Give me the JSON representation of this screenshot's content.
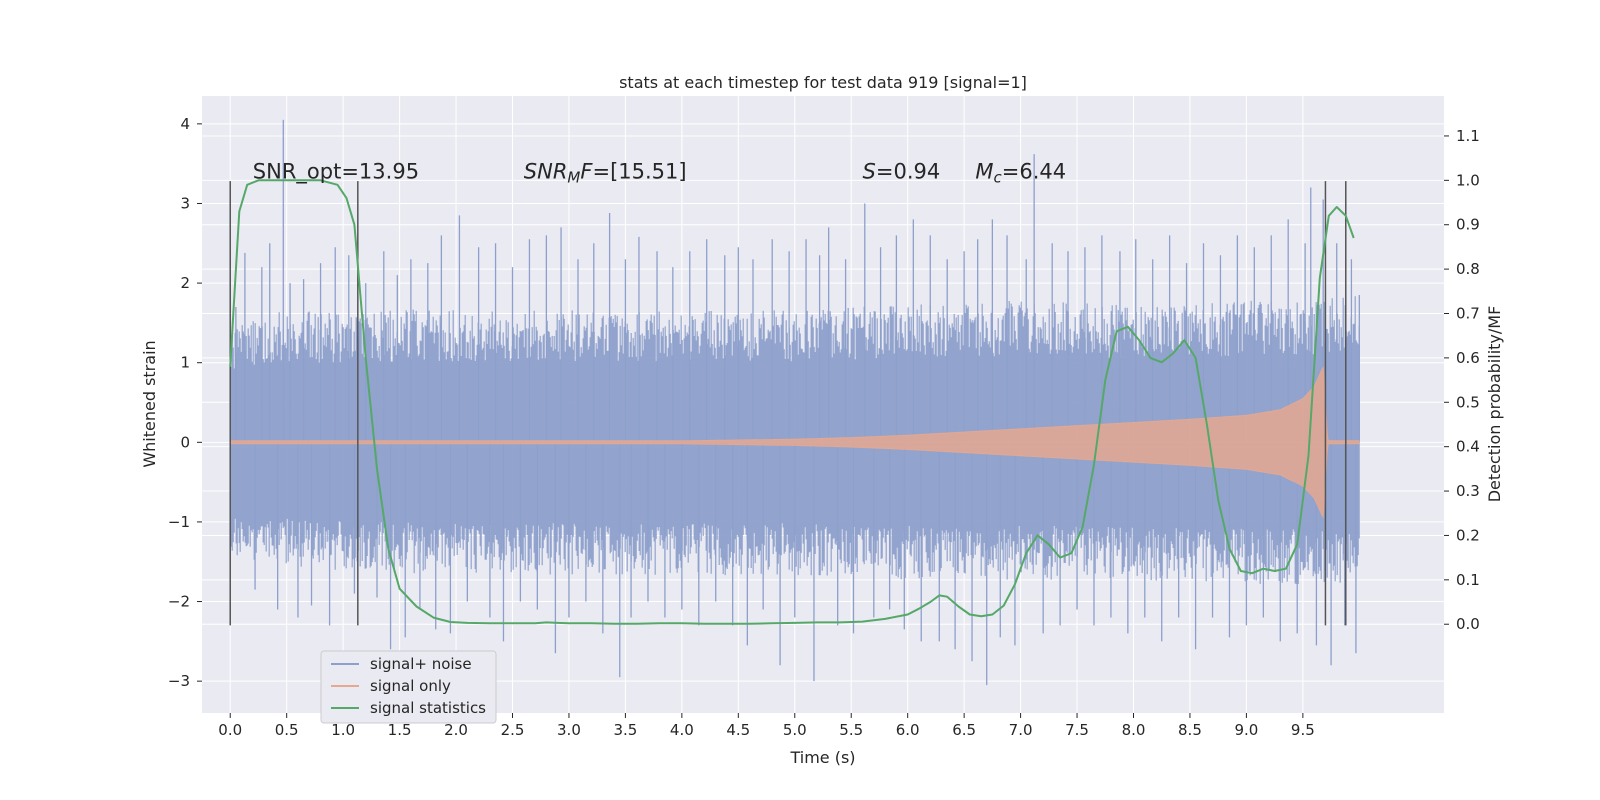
{
  "chart_data": {
    "type": "line",
    "title": "stats at each timestep for test data 919 [signal=1]",
    "xlabel": "Time (s)",
    "ylabel": "Whitened strain",
    "ylabel_right": "Detection probability/MF",
    "xlim": [
      -0.25,
      10.75
    ],
    "ylim": [
      -3.4,
      4.35
    ],
    "ylim_right": [
      -0.2,
      1.19
    ],
    "x_ticks": [
      "0.0",
      "0.5",
      "1.0",
      "1.5",
      "2.0",
      "2.5",
      "3.0",
      "3.5",
      "4.0",
      "4.5",
      "5.0",
      "5.5",
      "6.0",
      "6.5",
      "7.0",
      "7.5",
      "8.0",
      "8.5",
      "9.0",
      "9.5"
    ],
    "y_ticks": [
      "4",
      "3",
      "2",
      "1",
      "0",
      "−1",
      "−2",
      "−3"
    ],
    "y_ticks_right": [
      "1.1",
      "1.0",
      "0.9",
      "0.8",
      "0.7",
      "0.6",
      "0.5",
      "0.4",
      "0.3",
      "0.2",
      "0.1",
      "0.0"
    ],
    "grid": true,
    "legend_placement": "lower-left",
    "annotations": [
      {
        "x": 0.2,
        "y_right": 1.0,
        "parts": [
          {
            "t": "SNR_opt=13.95"
          }
        ]
      },
      {
        "x": 2.6,
        "y_right": 1.0,
        "parts": [
          {
            "t": "SNR",
            "style": "italic"
          },
          {
            "t": "M",
            "style": "italic-sub"
          },
          {
            "t": "F",
            "style": "italic"
          },
          {
            "t": "=[15.51]"
          }
        ]
      },
      {
        "x": 5.6,
        "y_right": 1.0,
        "parts": [
          {
            "t": "S",
            "style": "italic"
          },
          {
            "t": "=0.94"
          }
        ]
      },
      {
        "x": 6.6,
        "y_right": 1.0,
        "parts": [
          {
            "t": "M",
            "style": "italic"
          },
          {
            "t": "c",
            "style": "italic-sub"
          },
          {
            "t": "=6.44"
          }
        ]
      }
    ],
    "vlines": [
      {
        "x": 0.0,
        "y_from": -2.3,
        "y_to": 3.28
      },
      {
        "x": 1.13,
        "y_from": -2.3,
        "y_to": 3.28
      },
      {
        "x": 9.7,
        "y_from": -2.3,
        "y_to": 3.28
      },
      {
        "x": 9.88,
        "y_from": -2.3,
        "y_to": 3.28
      }
    ],
    "series": [
      {
        "name": "signal+ noise",
        "color": "#8da0cb",
        "kind": "noise-band",
        "x_range": [
          0.0,
          10.0
        ],
        "band_upper": [
          [
            0.0,
            1.3
          ],
          [
            0.5,
            1.45
          ],
          [
            1.0,
            1.4
          ],
          [
            1.5,
            1.45
          ],
          [
            2.0,
            1.45
          ],
          [
            3.0,
            1.45
          ],
          [
            4.0,
            1.45
          ],
          [
            5.0,
            1.45
          ],
          [
            6.0,
            1.5
          ],
          [
            7.0,
            1.55
          ],
          [
            8.0,
            1.5
          ],
          [
            9.0,
            1.55
          ],
          [
            10.0,
            1.6
          ]
        ],
        "band_lower": [
          [
            0.0,
            -1.3
          ],
          [
            1.0,
            -1.4
          ],
          [
            2.0,
            -1.45
          ],
          [
            3.0,
            -1.45
          ],
          [
            4.0,
            -1.45
          ],
          [
            5.0,
            -1.45
          ],
          [
            6.0,
            -1.5
          ],
          [
            7.0,
            -1.5
          ],
          [
            8.0,
            -1.5
          ],
          [
            9.0,
            -1.55
          ],
          [
            10.0,
            -1.55
          ]
        ],
        "spikes": [
          [
            0.05,
            1.7
          ],
          [
            0.13,
            2.38
          ],
          [
            0.22,
            -1.85
          ],
          [
            0.28,
            2.2
          ],
          [
            0.35,
            2.5
          ],
          [
            0.42,
            -2.1
          ],
          [
            0.47,
            4.05
          ],
          [
            0.53,
            2.0
          ],
          [
            0.6,
            -2.2
          ],
          [
            0.65,
            2.05
          ],
          [
            0.72,
            -2.05
          ],
          [
            0.8,
            2.25
          ],
          [
            0.88,
            -2.3
          ],
          [
            0.93,
            2.45
          ],
          [
            1.05,
            2.35
          ],
          [
            1.1,
            -1.9
          ],
          [
            1.2,
            2.0
          ],
          [
            1.3,
            -1.95
          ],
          [
            1.36,
            2.4
          ],
          [
            1.42,
            -2.6
          ],
          [
            1.48,
            2.1
          ],
          [
            1.55,
            -2.45
          ],
          [
            1.6,
            2.3
          ],
          [
            1.68,
            -2.1
          ],
          [
            1.75,
            2.25
          ],
          [
            1.82,
            -2.35
          ],
          [
            1.87,
            2.6
          ],
          [
            1.95,
            -2.4
          ],
          [
            2.03,
            2.85
          ],
          [
            2.1,
            -2.0
          ],
          [
            2.2,
            2.45
          ],
          [
            2.3,
            -2.2
          ],
          [
            2.35,
            2.5
          ],
          [
            2.42,
            -2.5
          ],
          [
            2.5,
            2.2
          ],
          [
            2.57,
            -2.0
          ],
          [
            2.65,
            2.55
          ],
          [
            2.72,
            -2.1
          ],
          [
            2.8,
            2.6
          ],
          [
            2.88,
            -2.65
          ],
          [
            2.93,
            2.7
          ],
          [
            3.0,
            -2.2
          ],
          [
            3.08,
            2.3
          ],
          [
            3.15,
            -2.0
          ],
          [
            3.22,
            2.5
          ],
          [
            3.3,
            -2.4
          ],
          [
            3.36,
            2.88
          ],
          [
            3.45,
            -2.95
          ],
          [
            3.5,
            2.3
          ],
          [
            3.55,
            -2.2
          ],
          [
            3.62,
            2.58
          ],
          [
            3.7,
            -2.0
          ],
          [
            3.78,
            2.4
          ],
          [
            3.85,
            -2.2
          ],
          [
            3.92,
            2.2
          ],
          [
            4.0,
            -2.1
          ],
          [
            4.07,
            2.4
          ],
          [
            4.15,
            -2.3
          ],
          [
            4.22,
            2.55
          ],
          [
            4.3,
            -2.0
          ],
          [
            4.38,
            2.35
          ],
          [
            4.45,
            -2.3
          ],
          [
            4.5,
            2.45
          ],
          [
            4.58,
            -2.55
          ],
          [
            4.63,
            2.3
          ],
          [
            4.72,
            -2.1
          ],
          [
            4.8,
            2.55
          ],
          [
            4.87,
            -2.8
          ],
          [
            4.95,
            2.4
          ],
          [
            5.0,
            -2.2
          ],
          [
            5.1,
            2.55
          ],
          [
            5.17,
            -3.0
          ],
          [
            5.22,
            2.35
          ],
          [
            5.3,
            2.7
          ],
          [
            5.38,
            -2.3
          ],
          [
            5.45,
            2.3
          ],
          [
            5.52,
            -2.4
          ],
          [
            5.62,
            3.0
          ],
          [
            5.7,
            -2.2
          ],
          [
            5.76,
            2.45
          ],
          [
            5.84,
            -2.1
          ],
          [
            5.9,
            2.6
          ],
          [
            5.97,
            -2.35
          ],
          [
            6.05,
            2.8
          ],
          [
            6.12,
            -2.5
          ],
          [
            6.2,
            2.6
          ],
          [
            6.28,
            -2.5
          ],
          [
            6.35,
            2.3
          ],
          [
            6.42,
            -2.6
          ],
          [
            6.5,
            2.4
          ],
          [
            6.57,
            -2.75
          ],
          [
            6.62,
            2.55
          ],
          [
            6.7,
            -3.05
          ],
          [
            6.75,
            2.8
          ],
          [
            6.82,
            -2.45
          ],
          [
            6.88,
            2.6
          ],
          [
            6.95,
            -2.55
          ],
          [
            7.05,
            2.3
          ],
          [
            7.12,
            3.62
          ],
          [
            7.2,
            -2.4
          ],
          [
            7.28,
            2.5
          ],
          [
            7.35,
            -2.3
          ],
          [
            7.42,
            2.4
          ],
          [
            7.5,
            -2.1
          ],
          [
            7.57,
            2.45
          ],
          [
            7.65,
            -2.3
          ],
          [
            7.72,
            2.6
          ],
          [
            7.8,
            -2.2
          ],
          [
            7.88,
            2.4
          ],
          [
            7.95,
            -2.4
          ],
          [
            8.02,
            2.55
          ],
          [
            8.1,
            -2.2
          ],
          [
            8.17,
            2.3
          ],
          [
            8.25,
            -2.5
          ],
          [
            8.32,
            2.6
          ],
          [
            8.4,
            -2.2
          ],
          [
            8.47,
            2.25
          ],
          [
            8.55,
            -2.6
          ],
          [
            8.62,
            2.5
          ],
          [
            8.7,
            -2.2
          ],
          [
            8.77,
            2.35
          ],
          [
            8.85,
            -2.45
          ],
          [
            8.92,
            2.6
          ],
          [
            9.0,
            -2.3
          ],
          [
            9.07,
            2.45
          ],
          [
            9.15,
            -2.2
          ],
          [
            9.22,
            2.6
          ],
          [
            9.3,
            -2.5
          ],
          [
            9.37,
            2.8
          ],
          [
            9.45,
            -2.4
          ],
          [
            9.52,
            2.5
          ],
          [
            9.57,
            3.2
          ],
          [
            9.62,
            -2.55
          ],
          [
            9.68,
            3.05
          ],
          [
            9.75,
            -2.8
          ],
          [
            9.8,
            2.5
          ],
          [
            9.87,
            -2.3
          ],
          [
            9.93,
            2.3
          ],
          [
            9.97,
            -2.65
          ],
          [
            10.0,
            1.85
          ]
        ]
      },
      {
        "name": "signal only",
        "color": "#e5a890",
        "kind": "chirp-envelope",
        "x_range": [
          0.0,
          10.0
        ],
        "envelope": [
          [
            0.0,
            0.02
          ],
          [
            1.0,
            0.02
          ],
          [
            2.0,
            0.02
          ],
          [
            3.0,
            0.02
          ],
          [
            4.0,
            0.02
          ],
          [
            4.5,
            0.03
          ],
          [
            5.0,
            0.04
          ],
          [
            5.5,
            0.06
          ],
          [
            6.0,
            0.09
          ],
          [
            6.5,
            0.13
          ],
          [
            7.0,
            0.17
          ],
          [
            7.5,
            0.21
          ],
          [
            8.0,
            0.25
          ],
          [
            8.5,
            0.29
          ],
          [
            9.0,
            0.34
          ],
          [
            9.3,
            0.41
          ],
          [
            9.5,
            0.55
          ],
          [
            9.6,
            0.7
          ],
          [
            9.68,
            0.95
          ],
          [
            9.72,
            0.02
          ],
          [
            10.0,
            0.02
          ]
        ]
      },
      {
        "name": "signal statistics",
        "color": "#55a868",
        "axis": "right",
        "x": [
          0.0,
          0.08,
          0.15,
          0.25,
          0.4,
          0.6,
          0.8,
          0.95,
          1.03,
          1.1,
          1.2,
          1.3,
          1.4,
          1.5,
          1.65,
          1.8,
          1.95,
          2.1,
          2.3,
          2.5,
          2.7,
          2.8,
          2.9,
          3.0,
          3.2,
          3.4,
          3.6,
          3.8,
          4.0,
          4.2,
          4.4,
          4.6,
          4.8,
          5.0,
          5.2,
          5.4,
          5.6,
          5.8,
          6.0,
          6.1,
          6.2,
          6.28,
          6.35,
          6.45,
          6.55,
          6.65,
          6.75,
          6.85,
          6.95,
          7.05,
          7.15,
          7.25,
          7.35,
          7.45,
          7.55,
          7.65,
          7.75,
          7.85,
          7.95,
          8.05,
          8.15,
          8.25,
          8.35,
          8.45,
          8.55,
          8.65,
          8.75,
          8.85,
          8.95,
          9.05,
          9.15,
          9.25,
          9.35,
          9.45,
          9.55,
          9.65,
          9.73,
          9.8,
          9.88,
          9.95
        ],
        "values": [
          0.58,
          0.93,
          0.99,
          1.0,
          1.0,
          1.0,
          1.0,
          0.99,
          0.96,
          0.9,
          0.6,
          0.35,
          0.17,
          0.08,
          0.04,
          0.015,
          0.005,
          0.003,
          0.002,
          0.002,
          0.002,
          0.004,
          0.003,
          0.002,
          0.002,
          0.001,
          0.001,
          0.002,
          0.002,
          0.001,
          0.001,
          0.001,
          0.002,
          0.003,
          0.004,
          0.004,
          0.006,
          0.012,
          0.022,
          0.035,
          0.05,
          0.065,
          0.062,
          0.04,
          0.022,
          0.018,
          0.022,
          0.042,
          0.09,
          0.16,
          0.2,
          0.18,
          0.15,
          0.16,
          0.22,
          0.36,
          0.55,
          0.66,
          0.67,
          0.64,
          0.6,
          0.59,
          0.61,
          0.64,
          0.6,
          0.45,
          0.28,
          0.17,
          0.12,
          0.115,
          0.125,
          0.12,
          0.125,
          0.18,
          0.38,
          0.78,
          0.92,
          0.94,
          0.92,
          0.87
        ]
      }
    ]
  }
}
